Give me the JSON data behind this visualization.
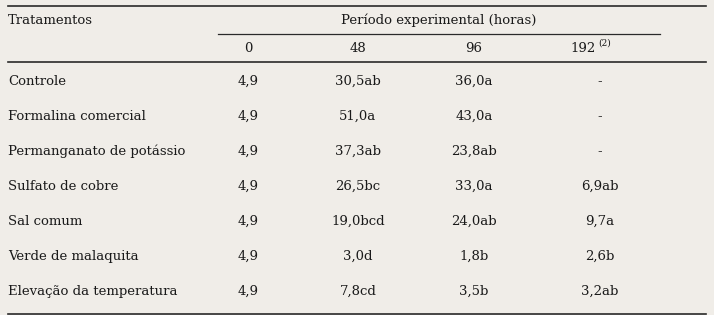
{
  "title_left": "Tratamentos",
  "title_right": "Período experimental (horas)",
  "col_headers": [
    "0",
    "48",
    "96",
    "192(2)"
  ],
  "rows": [
    [
      "Controle",
      "4,9",
      "30,5ab",
      "36,0a",
      "-"
    ],
    [
      "Formalina comercial",
      "4,9",
      "51,0a",
      "43,0a",
      "-"
    ],
    [
      "Permanganato de potássio",
      "4,9",
      "37,3ab",
      "23,8ab",
      "-"
    ],
    [
      "Sulfato de cobre",
      "4,9",
      "26,5bc",
      "33,0a",
      "6,9ab"
    ],
    [
      "Sal comum",
      "4,9",
      "19,0bcd",
      "24,0ab",
      "9,7a"
    ],
    [
      "Verde de malaquita",
      "4,9",
      "3,0d",
      "1,8b",
      "2,6b"
    ],
    [
      "Elevação da temperatura",
      "4,9",
      "7,8cd",
      "3,5b",
      "3,2ab"
    ]
  ],
  "bg_color": "#f0ede8",
  "text_color": "#1a1a1a",
  "font_size": 9.5,
  "line_color": "#2a2a2a"
}
